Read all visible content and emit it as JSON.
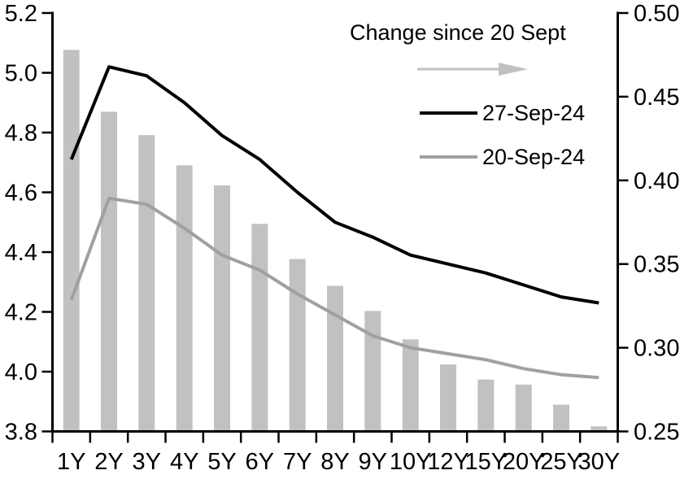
{
  "chart_data": {
    "type": "combo-bar-line",
    "title": "",
    "categories": [
      "1Y",
      "2Y",
      "3Y",
      "4Y",
      "5Y",
      "6Y",
      "7Y",
      "8Y",
      "9Y",
      "10Y",
      "12Y",
      "15Y",
      "20Y",
      "25Y",
      "30Y"
    ],
    "series": [
      {
        "name": "Change since 20 Sept",
        "type": "bar",
        "axis": "right",
        "color": "#c1c1c1",
        "values": [
          0.478,
          0.441,
          0.427,
          0.409,
          0.397,
          0.374,
          0.353,
          0.337,
          0.322,
          0.305,
          0.29,
          0.281,
          0.278,
          0.266,
          0.253
        ]
      },
      {
        "name": "27-Sep-24",
        "type": "line",
        "axis": "left",
        "color": "#000000",
        "stroke_width": 4,
        "values": [
          4.71,
          5.02,
          4.99,
          4.9,
          4.79,
          4.71,
          4.6,
          4.5,
          4.45,
          4.39,
          4.36,
          4.33,
          4.29,
          4.25,
          4.23
        ]
      },
      {
        "name": "20-Sep-24",
        "type": "line",
        "axis": "left",
        "color": "#a0a0a0",
        "stroke_width": 4,
        "values": [
          4.24,
          4.58,
          4.56,
          4.48,
          4.39,
          4.34,
          4.26,
          4.19,
          4.12,
          4.08,
          4.06,
          4.04,
          4.01,
          3.99,
          3.98
        ]
      }
    ],
    "left_axis": {
      "min": 3.8,
      "max": 5.2,
      "step": 0.2,
      "tick_labels": [
        "5.2",
        "5.0",
        "4.8",
        "4.6",
        "4.4",
        "4.2",
        "4.0",
        "3.8"
      ]
    },
    "right_axis": {
      "min": 0.25,
      "max": 0.5,
      "step": 0.05,
      "tick_labels": [
        "0.50",
        "0.45",
        "0.40",
        "0.35",
        "0.30",
        "0.25"
      ]
    },
    "grid": false,
    "legend_position": "inside-top-right"
  },
  "legend": {
    "change_label": "Change since 20 Sept",
    "arrow_icon": "right-arrow",
    "arrow_color": "#c0c0c0",
    "series": [
      {
        "label": "27-Sep-24",
        "color": "#000000"
      },
      {
        "label": "20-Sep-24",
        "color": "#a0a0a0"
      }
    ]
  },
  "colors": {
    "background": "#ffffff",
    "axis": "#000000",
    "bar": "#c1c1c1",
    "line_black": "#000000",
    "line_gray": "#a0a0a0",
    "text": "#000000"
  }
}
